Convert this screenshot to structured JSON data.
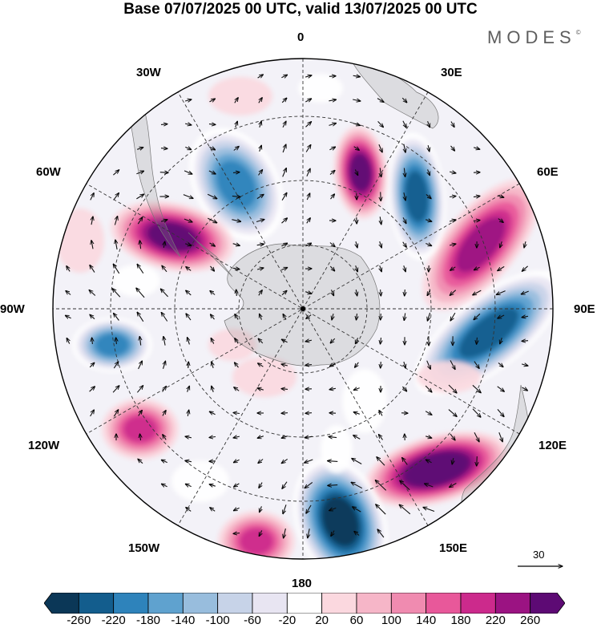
{
  "title": "Base 07/07/2025 00 UTC, valid 13/07/2025 00 UTC",
  "brand": {
    "name": "MODES",
    "mark": "©"
  },
  "map": {
    "projection": "south polar stereographic",
    "longitude_labels": [
      "0",
      "30E",
      "60E",
      "90E",
      "120E",
      "150E",
      "180",
      "150W",
      "120W",
      "90W",
      "60W",
      "30W"
    ],
    "anomaly_lobes": [
      {
        "sign": "positive",
        "max_level": 260,
        "region": "Southern Ocean south of Australia (120E)"
      },
      {
        "sign": "negative",
        "max_level": -260,
        "region": "south of New Zealand (150E-180)"
      },
      {
        "sign": "negative",
        "max_level": -220,
        "region": "southern Indian Ocean (90E)"
      },
      {
        "sign": "positive",
        "max_level": 180,
        "region": "southern Indian Ocean (60E)"
      },
      {
        "sign": "negative",
        "max_level": -220,
        "region": "south Atlantic (30E)"
      },
      {
        "sign": "positive",
        "max_level": 220,
        "region": "south Atlantic near 0-15E"
      },
      {
        "sign": "negative",
        "max_level": -180,
        "region": "Weddell Sea / 30W"
      },
      {
        "sign": "positive",
        "max_level": 220,
        "region": "south of South America (60W)"
      },
      {
        "sign": "negative",
        "max_level": -180,
        "region": "Bellingshausen Sea (90W)"
      },
      {
        "sign": "positive",
        "max_level": 140,
        "region": "Amundsen Sea (120W)"
      },
      {
        "sign": "positive",
        "max_level": 140,
        "region": "Pacific sector (160W)"
      }
    ]
  },
  "vector_reference": {
    "label": "30"
  },
  "colorbar": {
    "ticks": [
      "-260",
      "-220",
      "-180",
      "-140",
      "-100",
      "-60",
      "-20",
      "20",
      "60",
      "100",
      "140",
      "180",
      "220",
      "260"
    ],
    "colors": [
      "#0b3757",
      "#135d8d",
      "#2e83bb",
      "#5fa2cf",
      "#98bddd",
      "#c7d3e8",
      "#e8e5f2",
      "#ffffff",
      "#fbd8df",
      "#f6b6c8",
      "#f08bb0",
      "#e8589a",
      "#cc2a8c",
      "#9b1382",
      "#5d0a74"
    ]
  }
}
